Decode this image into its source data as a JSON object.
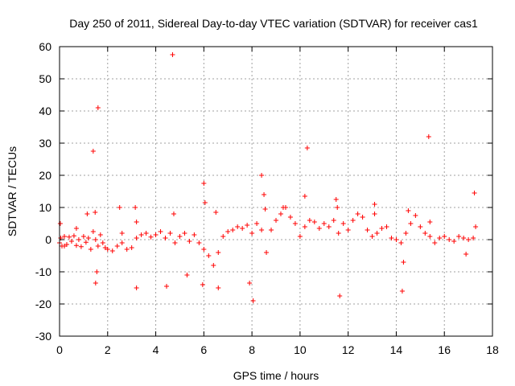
{
  "chart_data": {
    "type": "scatter",
    "title": "Day 250 of 2011, Sidereal Day-to-day VTEC variation (SDTVAR) for receiver cas1",
    "xlabel": "GPS time / hours",
    "ylabel": "SDTVAR / TECUs",
    "xlim": [
      0,
      18
    ],
    "ylim": [
      -30,
      60
    ],
    "x_ticks": [
      "0",
      "2",
      "4",
      "6",
      "8",
      "10",
      "12",
      "14",
      "16",
      "18"
    ],
    "y_ticks": [
      "-30",
      "-20",
      "-10",
      "0",
      "10",
      "20",
      "30",
      "40",
      "50",
      "60"
    ],
    "grid": true,
    "marker": "+",
    "series_color": "#ff0000",
    "series": [
      {
        "name": "SDTVAR",
        "x": [
          0.0,
          0.05,
          0.1,
          0.2,
          0.3,
          0.4,
          0.5,
          0.6,
          0.7,
          0.8,
          0.9,
          1.0,
          1.1,
          1.2,
          1.3,
          1.4,
          1.5,
          1.6,
          1.7,
          1.8,
          1.9,
          2.0,
          2.2,
          2.4,
          2.6,
          2.8,
          3.0,
          3.2,
          3.4,
          3.6,
          3.8,
          4.0,
          4.2,
          4.4,
          4.6,
          4.8,
          5.0,
          5.2,
          5.4,
          5.6,
          5.8,
          6.0,
          6.2,
          6.4,
          6.6,
          6.8,
          7.0,
          7.2,
          7.4,
          7.6,
          7.8,
          8.0,
          8.2,
          8.4,
          8.6,
          8.8,
          9.0,
          9.2,
          9.4,
          9.6,
          9.8,
          10.0,
          10.2,
          10.4,
          10.6,
          10.8,
          11.0,
          11.2,
          11.4,
          11.6,
          11.8,
          12.0,
          12.2,
          12.4,
          12.6,
          12.8,
          13.0,
          13.2,
          13.4,
          13.6,
          13.8,
          14.0,
          14.2,
          14.4,
          14.6,
          14.8,
          15.0,
          15.2,
          15.4,
          15.6,
          15.8,
          16.0,
          16.2,
          16.4,
          16.6,
          16.8,
          17.0,
          17.2,
          0.03,
          0.2,
          0.7,
          1.15,
          1.4,
          1.48,
          1.5,
          1.55,
          1.6,
          2.5,
          2.6,
          3.15,
          3.2,
          3.2,
          4.45,
          4.7,
          4.75,
          5.3,
          5.95,
          6.0,
          6.05,
          6.5,
          6.6,
          7.9,
          8.05,
          8.4,
          8.5,
          8.55,
          9.3,
          10.2,
          10.3,
          11.5,
          11.55,
          11.65,
          13.1,
          13.1,
          14.25,
          14.3,
          14.5,
          15.35,
          15.4,
          16.9,
          17.25,
          17.3
        ],
        "y": [
          -1.0,
          0.5,
          -2.0,
          1.0,
          -1.5,
          0.8,
          -0.5,
          1.2,
          -1.8,
          0.0,
          -2.2,
          1.0,
          -0.8,
          0.5,
          -3.0,
          2.5,
          0.0,
          -2.0,
          1.5,
          -1.0,
          -2.5,
          -3.0,
          -3.5,
          -2.0,
          -1.0,
          -3.0,
          -2.5,
          0.5,
          1.5,
          2.0,
          0.8,
          1.5,
          2.5,
          0.5,
          2.0,
          -1.0,
          1.0,
          2.0,
          -0.5,
          1.5,
          -1.0,
          -3.0,
          -5.0,
          -8.0,
          -4.0,
          1.0,
          2.5,
          3.0,
          4.0,
          3.5,
          4.5,
          2.0,
          5.0,
          3.0,
          -4.0,
          3.0,
          6.0,
          8.0,
          10.0,
          7.0,
          5.0,
          1.0,
          4.0,
          6.0,
          5.5,
          3.5,
          5.0,
          4.0,
          6.0,
          2.0,
          5.0,
          3.0,
          6.0,
          8.0,
          7.0,
          3.0,
          1.0,
          2.0,
          3.5,
          4.0,
          0.5,
          0.0,
          -1.0,
          2.0,
          5.0,
          7.5,
          4.0,
          2.0,
          1.0,
          -1.0,
          0.5,
          1.0,
          0.0,
          -0.5,
          1.0,
          0.5,
          0.0,
          0.5,
          5.0,
          -2.0,
          3.5,
          8.0,
          27.5,
          8.5,
          -13.5,
          -10.0,
          41.0,
          10.0,
          2.0,
          10.0,
          5.5,
          -15.0,
          -14.5,
          57.5,
          8.0,
          -11.0,
          -14.0,
          17.5,
          11.5,
          8.5,
          -15.0,
          -13.5,
          -19.0,
          20.0,
          14.0,
          9.5,
          10.0,
          13.5,
          28.5,
          12.5,
          10.0,
          -17.5,
          11.0,
          8.0,
          -16.0,
          -7.0,
          9.0,
          32.0,
          5.5,
          -4.5,
          14.5,
          4.0
        ]
      }
    ]
  }
}
